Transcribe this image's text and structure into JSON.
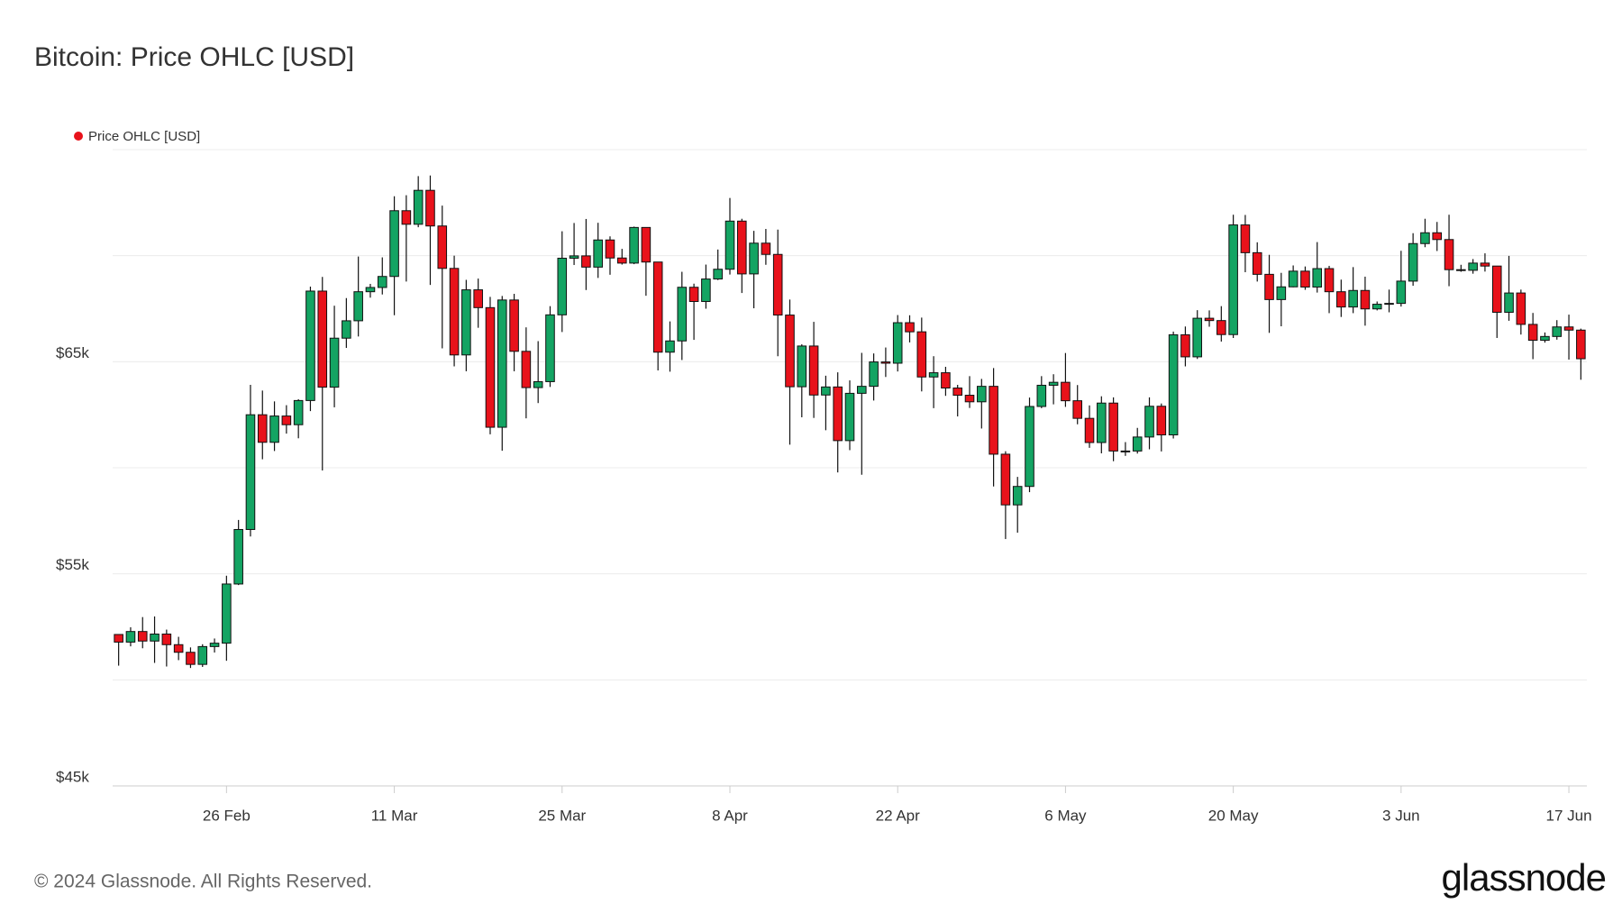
{
  "chart_data": {
    "type": "candlestick",
    "title": "Bitcoin: Price OHLC [USD]",
    "footer": "© 2024 Glassnode. All Rights Reserved.",
    "brand": "glassnode",
    "categories": [
      null,
      null,
      null,
      null,
      null,
      null,
      null,
      null,
      null,
      "26 Feb",
      null,
      null,
      null,
      null,
      null,
      null,
      null,
      null,
      null,
      null,
      null,
      null,
      null,
      "11 Mar",
      null,
      null,
      null,
      null,
      null,
      null,
      null,
      null,
      null,
      null,
      null,
      null,
      null,
      "25 Mar",
      null,
      null,
      null,
      null,
      null,
      null,
      null,
      null,
      null,
      null,
      null,
      null,
      null,
      "8 Apr",
      null,
      null,
      null,
      null,
      null,
      null,
      null,
      null,
      null,
      null,
      null,
      null,
      null,
      "22 Apr",
      null,
      null,
      null,
      null,
      null,
      null,
      null,
      null,
      null,
      null,
      null,
      null,
      null,
      "6 May",
      null,
      null,
      null,
      null,
      null,
      null,
      null,
      null,
      null,
      null,
      null,
      null,
      null,
      "20 May",
      null,
      null,
      null,
      null,
      null,
      null,
      null,
      null,
      null,
      null,
      null,
      null,
      null,
      "3 Jun",
      null,
      null,
      null,
      null,
      null,
      null,
      null,
      null,
      null,
      null,
      null,
      null,
      null,
      "17 Jun",
      null
    ],
    "series": [
      {
        "name": "Price OHLC [USD]",
        "color": "#e8121b",
        "up_color": "#14a463",
        "open": [
          52140,
          51780,
          52280,
          51830,
          52160,
          51660,
          51300,
          50730,
          51570,
          51730,
          54520,
          57090,
          62500,
          61200,
          62440,
          62030,
          63170,
          68330,
          63800,
          66110,
          66930,
          68300,
          68500,
          69020,
          72120,
          71480,
          73080,
          71400,
          69400,
          65320,
          68390,
          67550,
          61910,
          67910,
          65490,
          63780,
          64060,
          67210,
          69880,
          69990,
          69460,
          70740,
          69890,
          69650,
          71330,
          69700,
          65450,
          65980,
          68510,
          67840,
          68900,
          69360,
          71630,
          69140,
          70590,
          70060,
          67200,
          63820,
          65740,
          63430,
          63810,
          61280,
          63510,
          63840,
          64990,
          64930,
          66840,
          66410,
          64280,
          64480,
          63760,
          63420,
          63110,
          63840,
          60640,
          58250,
          59120,
          62890,
          63890,
          64030,
          63160,
          62330,
          61190,
          63050,
          60790,
          60790,
          61450,
          62900,
          61550,
          66270,
          65230,
          67050,
          66940,
          66280,
          71450,
          70140,
          69120,
          67930,
          68530,
          69270,
          68520,
          69390,
          68300,
          67580,
          68360,
          67490,
          67710,
          67750,
          68800,
          70570,
          71080,
          70760,
          69340,
          69310,
          69650,
          69510,
          67330,
          68240,
          66760,
          66010,
          66190,
          66640,
          66490
        ],
        "high": [
          52160,
          52480,
          52960,
          52990,
          52370,
          52030,
          51530,
          51680,
          51950,
          54910,
          57540,
          63910,
          63640,
          63130,
          62950,
          63230,
          68540,
          69000,
          67640,
          68000,
          69960,
          68670,
          69920,
          72800,
          72850,
          73750,
          73780,
          72360,
          70000,
          68860,
          68920,
          68060,
          68100,
          68200,
          66620,
          65970,
          67620,
          71150,
          71540,
          71730,
          71550,
          70910,
          70320,
          71370,
          71340,
          69710,
          66900,
          69240,
          68680,
          69580,
          70290,
          72720,
          71740,
          71170,
          71260,
          71230,
          67930,
          65820,
          66880,
          64340,
          64500,
          64120,
          65420,
          65390,
          65670,
          67200,
          67190,
          67080,
          65260,
          64760,
          63910,
          64320,
          64190,
          64700,
          60780,
          59570,
          63310,
          64320,
          64410,
          65410,
          63900,
          62940,
          63370,
          63320,
          61210,
          61880,
          63320,
          63030,
          66420,
          66660,
          67430,
          67420,
          67620,
          71930,
          71920,
          70630,
          70040,
          69190,
          69540,
          69490,
          70640,
          69520,
          68870,
          69460,
          69010,
          67840,
          68400,
          70230,
          71060,
          71740,
          71590,
          71930,
          69570,
          69840,
          70110,
          69520,
          69990,
          68400,
          67300,
          66380,
          66960,
          67220,
          66560
        ],
        "low": [
          50670,
          51580,
          51490,
          50800,
          50630,
          50930,
          50560,
          50610,
          51290,
          50900,
          54470,
          56760,
          60400,
          60790,
          61610,
          61390,
          62670,
          59870,
          62850,
          65650,
          66190,
          68020,
          68170,
          67190,
          68780,
          71340,
          68620,
          65630,
          64780,
          64550,
          66600,
          61580,
          60800,
          64550,
          62330,
          63050,
          63810,
          66400,
          69560,
          68380,
          68950,
          69100,
          69580,
          69600,
          68110,
          64590,
          64530,
          65080,
          66030,
          67500,
          68850,
          69110,
          68240,
          67520,
          69570,
          65260,
          61090,
          62380,
          62350,
          61770,
          59780,
          60830,
          59670,
          63170,
          64280,
          64540,
          65910,
          63600,
          62810,
          63390,
          62420,
          62820,
          61850,
          59120,
          56640,
          56940,
          58850,
          62810,
          62990,
          62870,
          62050,
          60940,
          60680,
          60310,
          60560,
          60670,
          60870,
          60770,
          61380,
          64780,
          65130,
          66650,
          65950,
          66120,
          69220,
          68780,
          66360,
          66670,
          68510,
          68390,
          68260,
          67290,
          67110,
          67290,
          66700,
          67420,
          67330,
          67600,
          68580,
          70400,
          70220,
          68560,
          69240,
          69150,
          69250,
          66120,
          66930,
          66280,
          65120,
          65900,
          66040,
          65100,
          64150
        ],
        "close": [
          51780,
          52280,
          51830,
          52160,
          51660,
          51300,
          50730,
          51570,
          51730,
          54520,
          57090,
          62500,
          61200,
          62440,
          62030,
          63170,
          68330,
          63800,
          66110,
          66930,
          68300,
          68500,
          69020,
          72120,
          71480,
          73080,
          71400,
          69400,
          65320,
          68390,
          67550,
          61910,
          67910,
          65490,
          63780,
          64060,
          67210,
          69880,
          69990,
          69460,
          70740,
          69890,
          69650,
          71330,
          69700,
          65450,
          65980,
          68510,
          67840,
          68900,
          69360,
          71630,
          69140,
          70590,
          70060,
          67200,
          63820,
          65740,
          63430,
          63810,
          61280,
          63510,
          63840,
          64990,
          64930,
          66840,
          66410,
          64280,
          64480,
          63760,
          63420,
          63110,
          63840,
          60640,
          58250,
          59120,
          62890,
          63890,
          64030,
          63160,
          62330,
          61190,
          63050,
          60790,
          60790,
          61450,
          62900,
          61550,
          66270,
          65230,
          67050,
          66940,
          66280,
          71450,
          70140,
          69120,
          67930,
          68530,
          69270,
          68520,
          69390,
          68300,
          67580,
          68360,
          67490,
          67710,
          67750,
          68800,
          70570,
          71080,
          70760,
          69340,
          69310,
          69650,
          69510,
          67330,
          68240,
          66760,
          66010,
          66190,
          66640,
          66490,
          65140
        ]
      }
    ],
    "ylim": [
      45000,
      75000
    ],
    "yticks": [
      {
        "value": 45000,
        "label": "$45k"
      },
      {
        "value": 55000,
        "label": "$55k"
      },
      {
        "value": 65000,
        "label": "$65k"
      }
    ],
    "ygrid": [
      45000,
      50000,
      55000,
      60000,
      65000,
      70000,
      75000
    ],
    "grid": true,
    "legend": "top-left"
  }
}
